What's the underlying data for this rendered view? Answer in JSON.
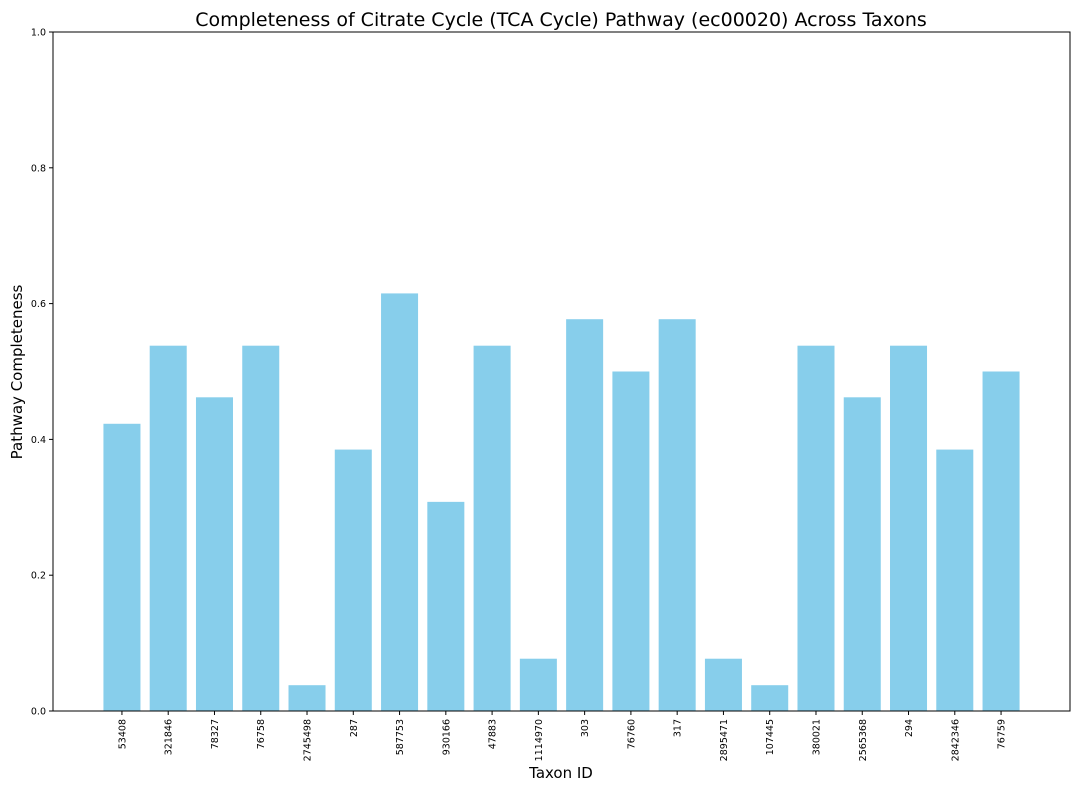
{
  "chart_data": {
    "type": "bar",
    "title": "Completeness of Citrate Cycle (TCA Cycle) Pathway (ec00020) Across Taxons",
    "xlabel": "Taxon ID",
    "ylabel": "Pathway Completeness",
    "categories": [
      "53408",
      "321846",
      "78327",
      "76758",
      "2745498",
      "287",
      "587753",
      "930166",
      "47883",
      "1114970",
      "303",
      "76760",
      "317",
      "2895471",
      "107445",
      "380021",
      "2565368",
      "294",
      "2842346",
      "76759"
    ],
    "values": [
      0.423,
      0.538,
      0.462,
      0.538,
      0.038,
      0.385,
      0.615,
      0.308,
      0.538,
      0.077,
      0.577,
      0.5,
      0.577,
      0.077,
      0.038,
      0.538,
      0.462,
      0.538,
      0.385,
      0.5
    ],
    "ylim": [
      0,
      1.0
    ],
    "yticks": [
      "0.0",
      "0.2",
      "0.4",
      "0.6",
      "0.8",
      "1.0"
    ],
    "grid": false,
    "colors": {
      "bar": "#87ceeb",
      "axis": "#000000",
      "background": "#ffffff"
    }
  }
}
